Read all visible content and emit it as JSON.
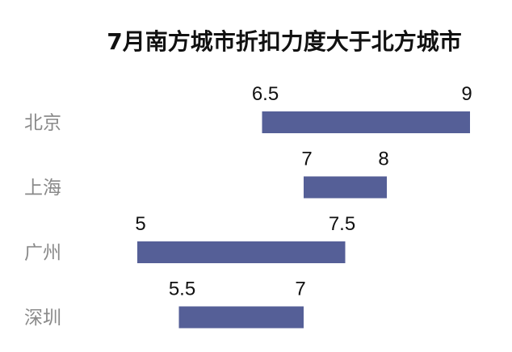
{
  "chart_data": {
    "type": "bar",
    "orientation": "horizontal-range",
    "title": "7月南方城市折扣力度大于北方城市",
    "categories": [
      "北京",
      "上海",
      "广州",
      "深圳"
    ],
    "ranges": [
      {
        "low": 6.5,
        "high": 9,
        "low_label": "6.5",
        "high_label": "9"
      },
      {
        "low": 7,
        "high": 8,
        "low_label": "7",
        "high_label": "8"
      },
      {
        "low": 5,
        "high": 7.5,
        "low_label": "5",
        "high_label": "7.5"
      },
      {
        "low": 5.5,
        "high": 7,
        "low_label": "5.5",
        "high_label": "7"
      }
    ],
    "xlim": [
      5,
      9
    ],
    "grid": false,
    "legend": "none",
    "bar_color": "#555f97"
  }
}
